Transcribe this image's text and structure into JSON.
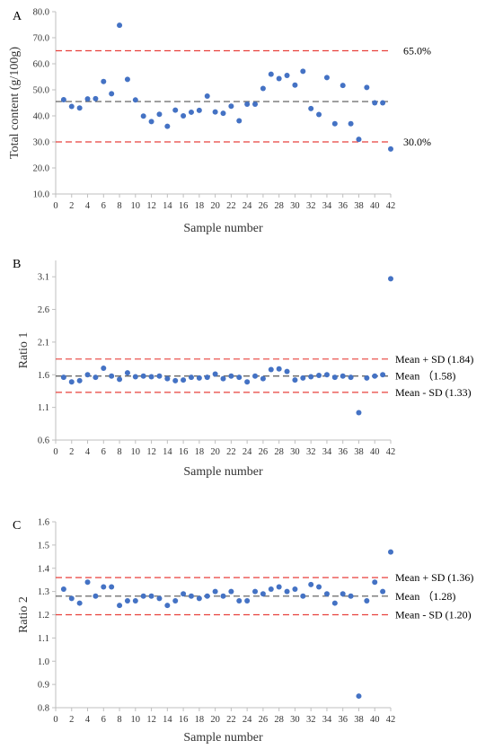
{
  "colors": {
    "point": "#4472c4",
    "limit_line": "#e8413c",
    "mean_line": "#555555",
    "axis": "#bfbfbf"
  },
  "chart_data": [
    {
      "type": "scatter",
      "panel": "A",
      "xlabel": "Sample number",
      "ylabel": "Total content (g/100g)",
      "xlim": [
        0,
        42
      ],
      "ylim": [
        10,
        80
      ],
      "xticks": [
        "0",
        "2",
        "4",
        "6",
        "8",
        "10",
        "12",
        "14",
        "16",
        "18",
        "20",
        "22",
        "24",
        "26",
        "28",
        "30",
        "32",
        "34",
        "36",
        "38",
        "40",
        "42"
      ],
      "yticks": [
        "10.0",
        "20.0",
        "30.0",
        "40.0",
        "50.0",
        "60.0",
        "70.0",
        "80.0"
      ],
      "x": [
        1,
        2,
        3,
        4,
        5,
        6,
        7,
        8,
        9,
        10,
        11,
        12,
        13,
        14,
        15,
        16,
        17,
        18,
        19,
        20,
        21,
        22,
        23,
        24,
        25,
        26,
        27,
        28,
        29,
        30,
        31,
        32,
        33,
        34,
        35,
        36,
        37,
        38,
        39,
        40,
        41,
        42
      ],
      "y": [
        46.2,
        43.6,
        43.0,
        46.5,
        46.6,
        53.2,
        48.5,
        74.8,
        54.0,
        46.1,
        39.9,
        37.8,
        40.6,
        36.0,
        42.2,
        40.0,
        41.4,
        42.1,
        47.6,
        41.5,
        41.0,
        43.7,
        38.1,
        44.5,
        44.5,
        50.5,
        56.0,
        54.3,
        55.5,
        51.8,
        57.1,
        42.8,
        40.5,
        54.7,
        37.0,
        51.7,
        37.0,
        31.0,
        50.9,
        45.0,
        45.0,
        27.3
      ],
      "ref_lines": [
        {
          "y": 65.0,
          "label": "65.0%",
          "style": "limit"
        },
        {
          "y": 30.0,
          "label": "30.0%",
          "style": "limit"
        },
        {
          "y": 45.5,
          "label": "",
          "style": "mean"
        }
      ]
    },
    {
      "type": "scatter",
      "panel": "B",
      "xlabel": "Sample number",
      "ylabel": "Ratio 1",
      "xlim": [
        0,
        42
      ],
      "ylim": [
        0.6,
        3.35
      ],
      "xticks": [
        "0",
        "2",
        "4",
        "6",
        "8",
        "10",
        "12",
        "14",
        "16",
        "18",
        "20",
        "22",
        "24",
        "26",
        "28",
        "30",
        "32",
        "34",
        "36",
        "38",
        "40",
        "42"
      ],
      "yticks": [
        "0.6",
        "1.1",
        "1.6",
        "2.1",
        "2.6",
        "3.1"
      ],
      "x": [
        1,
        2,
        3,
        4,
        5,
        6,
        7,
        8,
        9,
        10,
        11,
        12,
        13,
        14,
        15,
        16,
        17,
        18,
        19,
        20,
        21,
        22,
        23,
        24,
        25,
        26,
        27,
        28,
        29,
        30,
        31,
        32,
        33,
        34,
        35,
        36,
        37,
        38,
        39,
        40,
        41,
        42
      ],
      "y": [
        1.56,
        1.49,
        1.51,
        1.6,
        1.56,
        1.7,
        1.58,
        1.53,
        1.63,
        1.57,
        1.58,
        1.57,
        1.58,
        1.54,
        1.51,
        1.52,
        1.56,
        1.55,
        1.56,
        1.61,
        1.54,
        1.58,
        1.56,
        1.49,
        1.58,
        1.54,
        1.68,
        1.69,
        1.65,
        1.52,
        1.55,
        1.57,
        1.59,
        1.6,
        1.56,
        1.58,
        1.56,
        1.02,
        1.55,
        1.58,
        1.6,
        3.07
      ],
      "ref_lines": [
        {
          "y": 1.84,
          "label": "Mean + SD (1.84)",
          "style": "limit"
        },
        {
          "y": 1.58,
          "label": "Mean （1.58)",
          "style": "mean"
        },
        {
          "y": 1.33,
          "label": "Mean - SD (1.33)",
          "style": "limit"
        }
      ]
    },
    {
      "type": "scatter",
      "panel": "C",
      "xlabel": "Sample number",
      "ylabel": "Ratio 2",
      "xlim": [
        0,
        42
      ],
      "ylim": [
        0.8,
        1.6
      ],
      "xticks": [
        "0",
        "2",
        "4",
        "6",
        "8",
        "10",
        "12",
        "14",
        "16",
        "18",
        "20",
        "22",
        "24",
        "26",
        "28",
        "30",
        "32",
        "34",
        "36",
        "38",
        "40",
        "42"
      ],
      "yticks": [
        "0.8",
        "0.9",
        "1.0",
        "1.1",
        "1.2",
        "1.3",
        "1.4",
        "1.5",
        "1.6"
      ],
      "x": [
        1,
        2,
        3,
        4,
        5,
        6,
        7,
        8,
        9,
        10,
        11,
        12,
        13,
        14,
        15,
        16,
        17,
        18,
        19,
        20,
        21,
        22,
        23,
        24,
        25,
        26,
        27,
        28,
        29,
        30,
        31,
        32,
        33,
        34,
        35,
        36,
        37,
        38,
        39,
        40,
        41,
        42
      ],
      "y": [
        1.31,
        1.27,
        1.25,
        1.34,
        1.28,
        1.32,
        1.32,
        1.24,
        1.26,
        1.26,
        1.28,
        1.28,
        1.27,
        1.24,
        1.26,
        1.29,
        1.28,
        1.27,
        1.28,
        1.3,
        1.28,
        1.3,
        1.26,
        1.26,
        1.3,
        1.29,
        1.31,
        1.32,
        1.3,
        1.31,
        1.28,
        1.33,
        1.32,
        1.29,
        1.25,
        1.29,
        1.28,
        0.85,
        1.26,
        1.34,
        1.3,
        1.47
      ],
      "ref_lines": [
        {
          "y": 1.36,
          "label": "Mean + SD (1.36)",
          "style": "limit"
        },
        {
          "y": 1.28,
          "label": "Mean （1.28)",
          "style": "mean"
        },
        {
          "y": 1.2,
          "label": "Mean - SD (1.20)",
          "style": "limit"
        }
      ]
    }
  ]
}
